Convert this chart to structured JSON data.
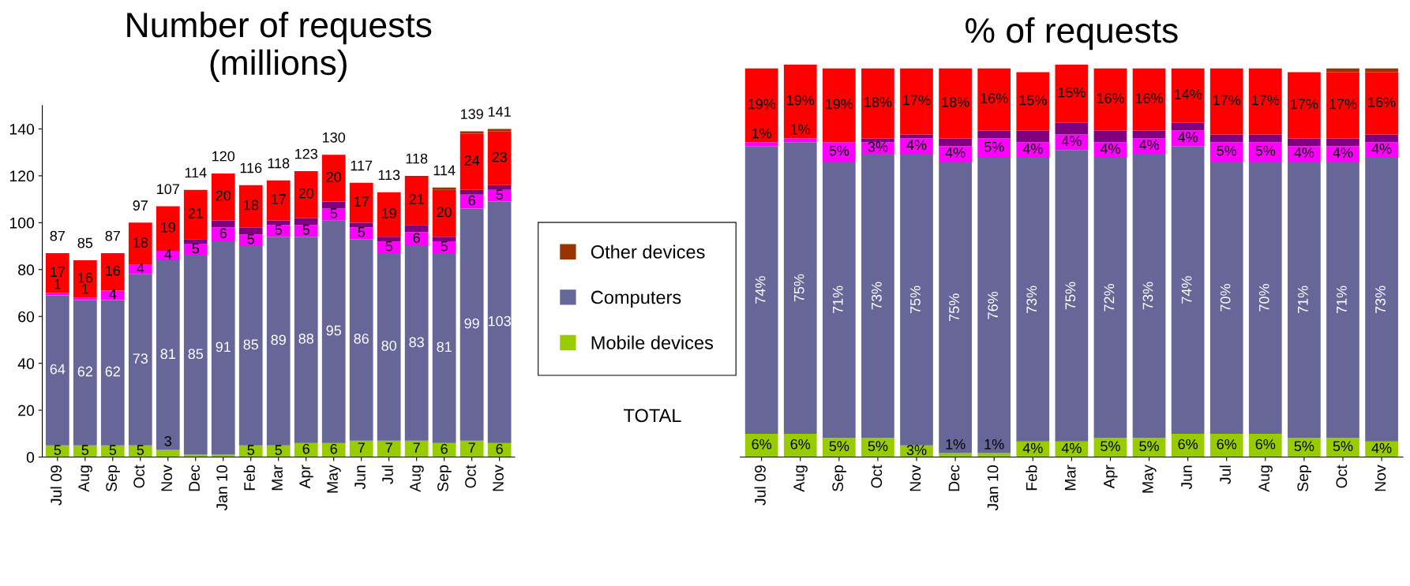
{
  "chart_data": [
    {
      "type": "bar",
      "stacked": true,
      "title": "Number of requests\n(millions)",
      "categories": [
        "Jul 09",
        "Aug",
        "Sep",
        "Oct",
        "Nov",
        "Dec",
        "Jan 10",
        "Feb",
        "Mar",
        "Apr",
        "May",
        "Jun",
        "Jul",
        "Aug",
        "Sep",
        "Oct",
        "Nov"
      ],
      "ylim": [
        0,
        150
      ],
      "yticks": [
        0,
        20,
        40,
        60,
        80,
        100,
        120,
        140
      ],
      "grid": false,
      "legend": "right",
      "annotations": [
        "TOTAL"
      ],
      "totals": [
        "87",
        "85",
        "87",
        "97",
        "107",
        "114",
        "120",
        "116",
        "118",
        "123",
        "130",
        "117",
        "113",
        "118",
        "114",
        "139",
        "141"
      ],
      "series": [
        {
          "name": "Mobile devices",
          "color": "#99cc00",
          "values": [
            5,
            5,
            5,
            5,
            3,
            1,
            1,
            5,
            5,
            6,
            6,
            7,
            7,
            7,
            6,
            7,
            6
          ],
          "value_labels": [
            "5",
            "5",
            "5",
            "5",
            "3",
            null,
            null,
            "5",
            "5",
            "6",
            "6",
            "7",
            "7",
            "7",
            "6",
            "7",
            "6"
          ]
        },
        {
          "name": "Computers",
          "color": "#666699",
          "values": [
            64,
            62,
            62,
            73,
            81,
            85,
            91,
            85,
            89,
            88,
            95,
            86,
            80,
            83,
            81,
            99,
            103
          ],
          "value_labels": [
            "64",
            "62",
            "62",
            "73",
            "81",
            "85",
            "91",
            "85",
            "89",
            "88",
            "95",
            "86",
            "80",
            "83",
            "81",
            "99",
            "103"
          ]
        },
        {
          "color": "#ff00ff",
          "values": [
            1,
            1,
            4,
            4,
            4,
            5,
            6,
            5,
            5,
            5,
            5,
            5,
            5,
            6,
            5,
            6,
            5
          ],
          "value_labels": [
            "1",
            "1",
            "4",
            "4",
            "4",
            "5",
            "6",
            "5",
            "5",
            "5",
            "5",
            "5",
            "5",
            "6",
            "5",
            "6",
            "5"
          ]
        },
        {
          "color": "#800080",
          "values": [
            0,
            0,
            0,
            0,
            0,
            2,
            3,
            3,
            2,
            3,
            3,
            2,
            2,
            3,
            2,
            2,
            2
          ]
        },
        {
          "color": "#ff0000",
          "values": [
            17,
            16,
            16,
            18,
            19,
            21,
            20,
            18,
            17,
            20,
            20,
            17,
            19,
            21,
            20,
            24,
            23
          ],
          "value_labels": [
            "17",
            "16",
            "16",
            "18",
            "19",
            "21",
            "20",
            "18",
            "17",
            "20",
            "20",
            "17",
            "19",
            "21",
            "20",
            "24",
            "23"
          ]
        },
        {
          "name": "Other devices",
          "color": "#993300",
          "values": [
            0,
            0,
            0,
            0,
            0,
            0,
            0,
            0,
            0,
            0,
            0,
            0,
            0,
            0,
            1,
            1,
            1
          ]
        }
      ]
    },
    {
      "type": "bar",
      "stacked": true,
      "title": "% of requests",
      "categories": [
        "Jul 09",
        "Aug",
        "Sep",
        "Oct",
        "Nov",
        "Dec",
        "Jan 10",
        "Feb",
        "Mar",
        "Apr",
        "May",
        "Jun",
        "Jul",
        "Aug",
        "Sep",
        "Oct",
        "Nov"
      ],
      "tick_labels": "x",
      "grid": false,
      "series": [
        {
          "color": "#99cc00",
          "values": [
            6,
            6,
            5,
            5,
            3,
            1,
            1,
            4,
            4,
            5,
            5,
            6,
            6,
            6,
            5,
            5,
            4
          ],
          "value_labels": [
            "6%",
            "6%",
            "5%",
            "5%",
            "3%",
            "1%",
            "1%",
            "4%",
            "4%",
            "5%",
            "5%",
            "6%",
            "6%",
            "6%",
            "5%",
            "5%",
            "4%"
          ]
        },
        {
          "color": "#666699",
          "values": [
            74,
            75,
            71,
            73,
            75,
            75,
            76,
            73,
            75,
            72,
            73,
            74,
            70,
            70,
            71,
            71,
            73
          ],
          "value_labels": [
            "74%",
            "75%",
            "71%",
            "73%",
            "75%",
            "75%",
            "76%",
            "73%",
            "75%",
            "72%",
            "73%",
            "74%",
            "70%",
            "70%",
            "71%",
            "71%",
            "73%"
          ]
        },
        {
          "color": "#ff00ff",
          "values": [
            1,
            1,
            5,
            3,
            4,
            4,
            5,
            4,
            4,
            4,
            4,
            4,
            5,
            5,
            4,
            4,
            4
          ],
          "value_labels": [
            "1%",
            "1%",
            "5%",
            "3%",
            "4%",
            "4%",
            "5%",
            "4%",
            "4%",
            "4%",
            "4%",
            "4%",
            "5%",
            "5%",
            "4%",
            "4%",
            "4%"
          ]
        },
        {
          "color": "#800080",
          "values": [
            0,
            0,
            0,
            1,
            1,
            2,
            2,
            3,
            3,
            3,
            2,
            2,
            2,
            2,
            2,
            2,
            2
          ]
        },
        {
          "color": "#ff0000",
          "values": [
            19,
            19,
            19,
            18,
            17,
            18,
            16,
            15,
            15,
            16,
            16,
            14,
            17,
            17,
            17,
            17,
            16
          ],
          "value_labels": [
            "19%",
            "19%",
            "19%",
            "18%",
            "17%",
            "18%",
            "16%",
            "15%",
            "15%",
            "16%",
            "16%",
            "14%",
            "17%",
            "17%",
            "17%",
            "17%",
            "16%"
          ]
        },
        {
          "color": "#993300",
          "values": [
            0,
            0,
            0,
            0,
            0,
            0,
            0,
            0,
            0,
            0,
            0,
            0,
            0,
            0,
            0,
            1,
            1
          ]
        }
      ]
    }
  ]
}
